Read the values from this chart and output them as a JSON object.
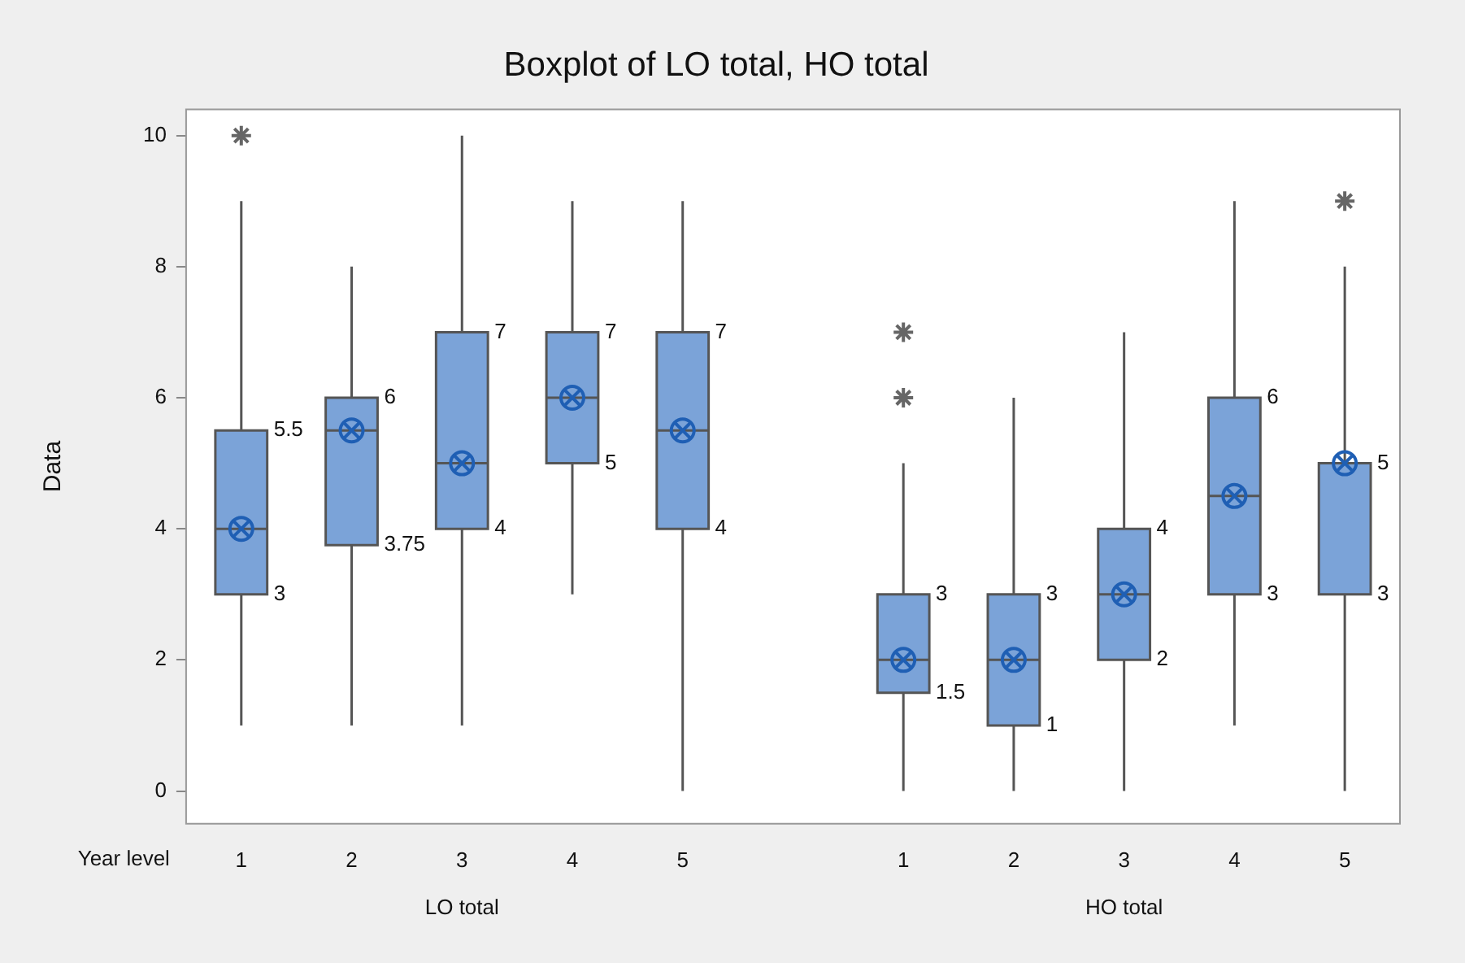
{
  "chart_data": {
    "type": "box",
    "title": "Boxplot of LO total, HO total",
    "xlabel": "Year level",
    "ylabel": "Data",
    "categories": [
      "1",
      "2",
      "3",
      "4",
      "5",
      null,
      "1",
      "2",
      "3",
      "4",
      "5"
    ],
    "boxes": [
      {
        "low": 1,
        "q1": 3,
        "median": 4,
        "q3": 5.5,
        "high": 9,
        "mean": 4,
        "outliers": [
          10
        ]
      },
      {
        "low": 1,
        "q1": 3.75,
        "median": 5.5,
        "q3": 6,
        "high": 8,
        "mean": 5.5
      },
      {
        "low": 1,
        "q1": 4,
        "median": 5,
        "q3": 7,
        "high": 10,
        "mean": 5
      },
      {
        "low": 3,
        "q1": 5,
        "median": 6,
        "q3": 7,
        "high": 9,
        "mean": 6
      },
      {
        "low": 0,
        "q1": 4,
        "median": 5.5,
        "q3": 7,
        "high": 9,
        "mean": 5.5
      },
      null,
      {
        "low": 0,
        "q1": 1.5,
        "median": 2,
        "q3": 3,
        "high": 5,
        "mean": 2,
        "outliers": [
          6,
          7
        ]
      },
      {
        "low": 0,
        "q1": 1,
        "median": 2,
        "q3": 3,
        "high": 6,
        "mean": 2
      },
      {
        "low": 0,
        "q1": 2,
        "median": 3,
        "q3": 4,
        "high": 7,
        "mean": 3
      },
      {
        "low": 1,
        "q1": 3,
        "median": 4.5,
        "q3": 6,
        "high": 9,
        "mean": 4.5
      },
      {
        "low": 0,
        "q1": 3,
        "median": 5,
        "q3": 5,
        "high": 8,
        "mean": 5,
        "outliers": [
          9
        ]
      }
    ],
    "value_labels": [
      [
        "5.5",
        "3"
      ],
      [
        "6",
        "3.75"
      ],
      [
        "7",
        "4"
      ],
      [
        "7",
        "5"
      ],
      [
        "7",
        "4"
      ],
      null,
      [
        "3",
        "1.5"
      ],
      [
        "3",
        "1"
      ],
      [
        "4",
        "2"
      ],
      [
        "6",
        "3"
      ],
      [
        "5",
        "3"
      ]
    ],
    "color": "#7ba3d8",
    "ylim": [
      -0.5,
      10.4
    ],
    "yticks": [
      0,
      2,
      4,
      6,
      8,
      10
    ],
    "annotations": [
      "LO total",
      "HO total"
    ]
  }
}
